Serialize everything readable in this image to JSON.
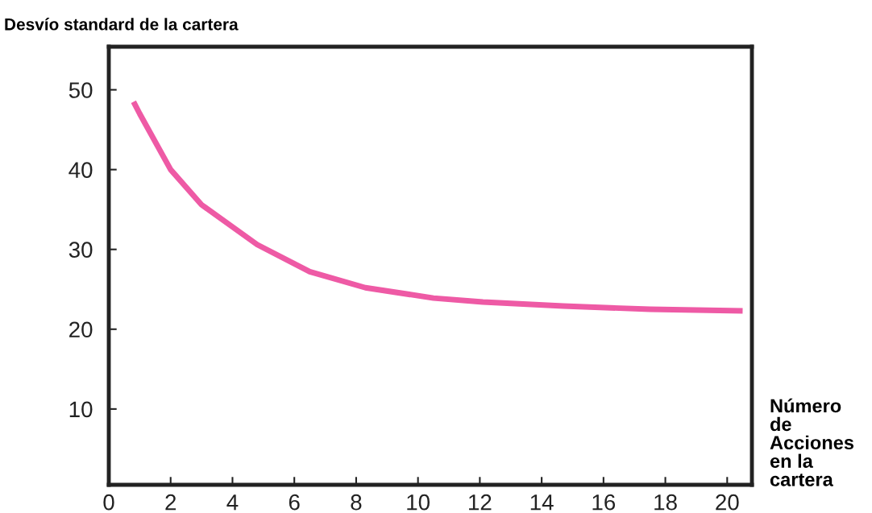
{
  "chart_data": {
    "type": "line",
    "ylabel": "Desvío standard de la cartera",
    "xlabel": "Número\nde\nAcciones\nen la\ncartera",
    "series": [
      {
        "color": "#ee5aa5",
        "x": [
          0.8,
          1.0,
          2.0,
          3.0,
          4.8,
          6.5,
          8.3,
          10.5,
          12.1,
          14.7,
          17.5,
          20.5
        ],
        "values": [
          48.5,
          47.0,
          40.0,
          35.6,
          30.6,
          27.2,
          25.2,
          23.9,
          23.4,
          22.9,
          22.5,
          22.3
        ]
      }
    ],
    "xlim": [
      0,
      20.8
    ],
    "ylim": [
      0.5,
      55.4
    ],
    "xticks": [
      0,
      2,
      4,
      6,
      8,
      10,
      12,
      14,
      16,
      18,
      20
    ],
    "yticks": [
      10,
      20,
      30,
      40,
      50
    ],
    "grid": false,
    "legend": false,
    "marker": "none",
    "line_style": "solid"
  }
}
